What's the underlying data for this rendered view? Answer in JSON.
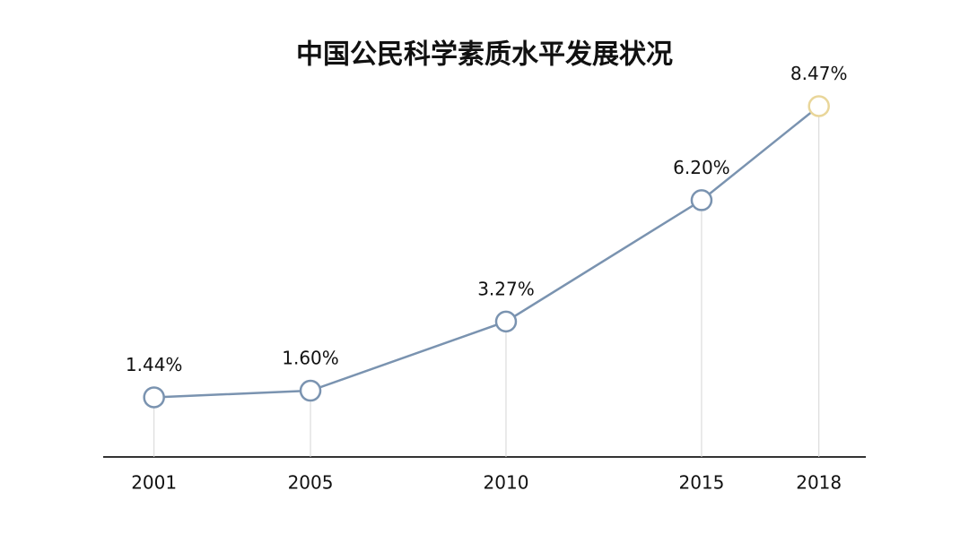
{
  "chart_data": {
    "type": "line",
    "title": "中国公民科学素质水平发展状况",
    "x": [
      2001,
      2005,
      2010,
      2015,
      2018
    ],
    "series": [
      {
        "color": "#7a93b0",
        "values": [
          1.44,
          1.6,
          3.27,
          6.2,
          8.47
        ],
        "value_labels": [
          "1.44%",
          "1.60%",
          "3.27%",
          "6.20%",
          "8.47%"
        ],
        "marker_colors": [
          "#7a93b0",
          "#7a93b0",
          "#7a93b0",
          "#7a93b0",
          "#e9d69a"
        ]
      }
    ],
    "xlim": [
      1999.7,
      2019.2
    ],
    "ylim": [
      0,
      9
    ]
  }
}
